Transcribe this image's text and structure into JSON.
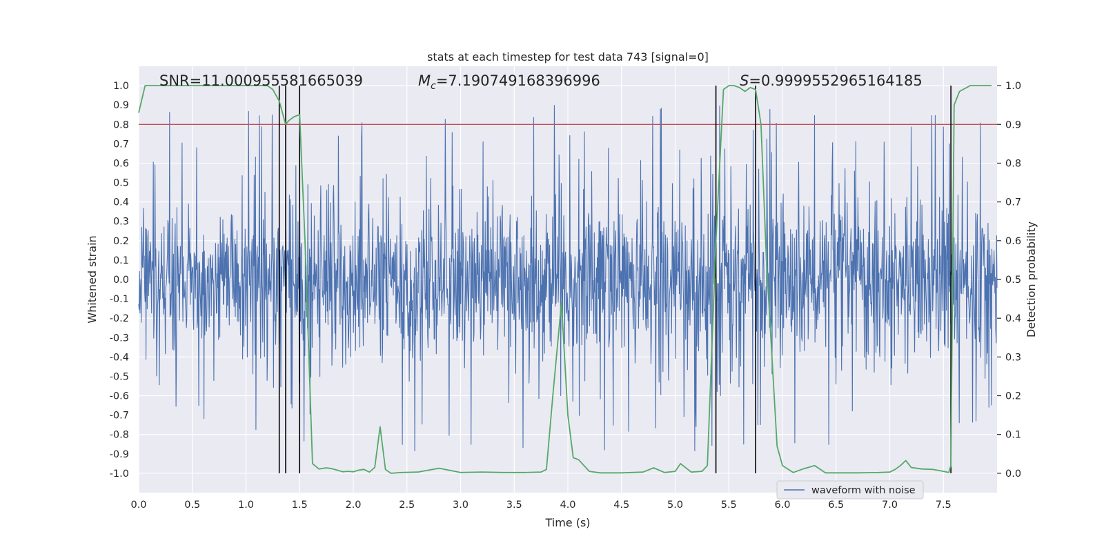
{
  "chart_data": {
    "type": "line",
    "title": "stats at each timestep for test data 743 [signal=0]",
    "xlabel": "Time (s)",
    "ylabel": "Whitened strain",
    "ylabel_right": "Detection probability",
    "xlim": [
      0.0,
      8.0
    ],
    "ylim": [
      -1.1,
      1.1
    ],
    "ylim_right": [
      -0.05,
      1.05
    ],
    "x_ticks": [
      0.0,
      0.5,
      1.0,
      1.5,
      2.0,
      2.5,
      3.0,
      3.5,
      4.0,
      4.5,
      5.0,
      5.5,
      6.0,
      6.5,
      7.0,
      7.5
    ],
    "x_tick_labels": [
      "0.0",
      "0.5",
      "1.0",
      "1.5",
      "2.0",
      "2.5",
      "3.0",
      "3.5",
      "4.0",
      "4.5",
      "5.0",
      "5.5",
      "6.0",
      "6.5",
      "7.0",
      "7.5"
    ],
    "y_ticks": [
      1.0,
      0.9,
      0.8,
      0.7,
      0.6,
      0.5,
      0.4,
      0.3,
      0.2,
      0.1,
      0.0,
      -0.1,
      -0.2,
      -0.3,
      -0.4,
      -0.5,
      -0.6,
      -0.7,
      -0.8,
      -0.9,
      -1.0
    ],
    "y_tick_labels": [
      "1.0",
      "0.9",
      "0.8",
      "0.7",
      "0.6",
      "0.5",
      "0.4",
      "0.3",
      "0.2",
      "0.1",
      "0.0",
      "-0.1",
      "-0.2",
      "-0.3",
      "-0.4",
      "-0.5",
      "-0.6",
      "-0.7",
      "-0.8",
      "-0.9",
      "-1.0"
    ],
    "y_right_ticks": [
      1.0,
      0.9,
      0.8,
      0.7,
      0.6,
      0.5,
      0.4,
      0.3,
      0.2,
      0.1,
      0.0
    ],
    "y_right_tick_labels": [
      "1.0",
      "0.9",
      "0.8",
      "0.7",
      "0.6",
      "0.5",
      "0.4",
      "0.3",
      "0.2",
      "0.1",
      "0.0"
    ],
    "annotations": {
      "snr": "SNR=11.000955581665039",
      "mc_symbol": "M",
      "mc_sub": "c",
      "mc_value": "=7.190749168396996",
      "s_symbol": "S",
      "s_value": "=0.9999552965164185"
    },
    "threshold": {
      "value": 0.9,
      "axis": "right",
      "color": "#c44e52"
    },
    "vertical_markers": [
      1.31,
      1.37,
      1.5,
      5.38,
      5.75,
      7.57
    ],
    "series": [
      {
        "name": "waveform with noise",
        "color": "#4c72b0",
        "axis": "left",
        "kind": "noise",
        "sample_count": 2000,
        "legend": true
      },
      {
        "name": "detection probability",
        "color": "#55a868",
        "axis": "right",
        "legend": false,
        "x": [
          0.0,
          0.06,
          0.12,
          0.2,
          0.4,
          0.6,
          0.8,
          1.0,
          1.1,
          1.2,
          1.25,
          1.31,
          1.37,
          1.4,
          1.45,
          1.5,
          1.55,
          1.62,
          1.68,
          1.75,
          1.8,
          1.85,
          1.9,
          1.95,
          2.0,
          2.05,
          2.1,
          2.15,
          2.2,
          2.25,
          2.3,
          2.35,
          2.45,
          2.6,
          2.8,
          3.0,
          3.2,
          3.4,
          3.6,
          3.75,
          3.8,
          3.86,
          3.94,
          4.0,
          4.05,
          4.1,
          4.2,
          4.3,
          4.5,
          4.7,
          4.8,
          4.9,
          5.0,
          5.05,
          5.15,
          5.25,
          5.3,
          5.38,
          5.45,
          5.5,
          5.55,
          5.6,
          5.65,
          5.7,
          5.75,
          5.8,
          5.85,
          5.95,
          6.0,
          6.1,
          6.2,
          6.3,
          6.4,
          6.7,
          6.9,
          7.0,
          7.05,
          7.1,
          7.15,
          7.2,
          7.3,
          7.4,
          7.5,
          7.55,
          7.57,
          7.6,
          7.65,
          7.75,
          7.85,
          7.95
        ],
        "y": [
          0.93,
          1.0,
          1.0,
          1.0,
          1.0,
          1.0,
          1.0,
          1.0,
          1.0,
          1.0,
          0.99,
          0.96,
          0.9,
          0.91,
          0.92,
          0.925,
          0.6,
          0.025,
          0.011,
          0.014,
          0.012,
          0.008,
          0.004,
          0.005,
          0.004,
          0.008,
          0.01,
          0.003,
          0.015,
          0.12,
          0.01,
          0.0,
          0.002,
          0.003,
          0.013,
          0.002,
          0.003,
          0.002,
          0.002,
          0.003,
          0.01,
          0.2,
          0.44,
          0.15,
          0.04,
          0.035,
          0.005,
          0.001,
          0.001,
          0.003,
          0.014,
          0.002,
          0.005,
          0.025,
          0.003,
          0.005,
          0.02,
          0.6,
          0.99,
          1.0,
          1.0,
          0.995,
          0.985,
          0.995,
          0.99,
          0.9,
          0.55,
          0.07,
          0.02,
          0.002,
          0.012,
          0.02,
          0.001,
          0.001,
          0.002,
          0.003,
          0.01,
          0.02,
          0.033,
          0.015,
          0.011,
          0.01,
          0.005,
          0.002,
          0.02,
          0.95,
          0.985,
          1.0,
          1.0,
          1.0
        ]
      }
    ],
    "legend_position": "bottom-right"
  }
}
